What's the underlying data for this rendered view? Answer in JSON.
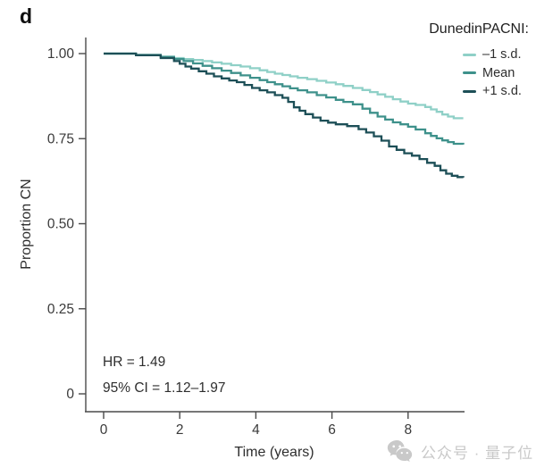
{
  "panel_label": "d",
  "legend": {
    "title": "DunedinPACNI:",
    "entries": [
      {
        "label": "–1 s.d.",
        "color": "#8fd0c7"
      },
      {
        "label": "Mean",
        "color": "#3e918b"
      },
      {
        "label": "+1 s.d.",
        "color": "#1d4f57"
      }
    ]
  },
  "annotations": {
    "hr": "HR = 1.49",
    "ci": "95% CI = 1.12–1.97"
  },
  "watermark": {
    "icon": "wechat-icon",
    "text": "公众号 · 量子位",
    "color": "#c9c9c9"
  },
  "colors": {
    "axis": "#4a4a4a",
    "tick_text": "#3a3a3a"
  },
  "chart_data": {
    "type": "line",
    "subtype": "kaplan-meier-step",
    "title": "",
    "xlabel": "Time (years)",
    "ylabel": "Proportion CN",
    "xlim": [
      0,
      9.5
    ],
    "ylim": [
      0,
      1.05
    ],
    "grid": false,
    "legend_position": "top-right",
    "xticks": [
      {
        "value": 0,
        "label": "0"
      },
      {
        "value": 2,
        "label": "2"
      },
      {
        "value": 4,
        "label": "4"
      },
      {
        "value": 6,
        "label": "6"
      },
      {
        "value": 8,
        "label": "8"
      }
    ],
    "yticks": [
      {
        "value": 1.0,
        "label": "1.00"
      },
      {
        "value": 0.75,
        "label": "0.75"
      },
      {
        "value": 0.5,
        "label": "0.50"
      },
      {
        "value": 0.25,
        "label": "0.25"
      },
      {
        "value": 0.0,
        "label": "0"
      }
    ],
    "series": [
      {
        "name": "-1 s.d.",
        "color": "#8fd0c7",
        "points": [
          [
            0,
            1.0
          ],
          [
            0.85,
            0.996
          ],
          [
            1.5,
            0.991
          ],
          [
            1.85,
            0.987
          ],
          [
            2.1,
            0.984
          ],
          [
            2.35,
            0.981
          ],
          [
            2.6,
            0.978
          ],
          [
            2.85,
            0.974
          ],
          [
            3.1,
            0.97
          ],
          [
            3.35,
            0.966
          ],
          [
            3.6,
            0.962
          ],
          [
            3.85,
            0.957
          ],
          [
            4.1,
            0.951
          ],
          [
            4.3,
            0.946
          ],
          [
            4.5,
            0.941
          ],
          [
            4.7,
            0.937
          ],
          [
            4.9,
            0.933
          ],
          [
            5.1,
            0.929
          ],
          [
            5.35,
            0.925
          ],
          [
            5.6,
            0.92
          ],
          [
            5.85,
            0.915
          ],
          [
            6.1,
            0.91
          ],
          [
            6.3,
            0.905
          ],
          [
            6.55,
            0.899
          ],
          [
            6.8,
            0.893
          ],
          [
            7.0,
            0.887
          ],
          [
            7.2,
            0.88
          ],
          [
            7.4,
            0.873
          ],
          [
            7.6,
            0.866
          ],
          [
            7.8,
            0.859
          ],
          [
            8.0,
            0.853
          ],
          [
            8.2,
            0.849
          ],
          [
            8.45,
            0.843
          ],
          [
            8.6,
            0.836
          ],
          [
            8.75,
            0.829
          ],
          [
            8.9,
            0.821
          ],
          [
            9.05,
            0.815
          ],
          [
            9.2,
            0.81
          ],
          [
            9.45,
            0.81
          ]
        ]
      },
      {
        "name": "Mean",
        "color": "#3e918b",
        "points": [
          [
            0,
            1.0
          ],
          [
            0.85,
            0.996
          ],
          [
            1.5,
            0.99
          ],
          [
            1.85,
            0.984
          ],
          [
            2.1,
            0.978
          ],
          [
            2.35,
            0.971
          ],
          [
            2.6,
            0.964
          ],
          [
            2.85,
            0.957
          ],
          [
            3.1,
            0.95
          ],
          [
            3.35,
            0.943
          ],
          [
            3.6,
            0.936
          ],
          [
            3.85,
            0.929
          ],
          [
            4.1,
            0.922
          ],
          [
            4.3,
            0.916
          ],
          [
            4.5,
            0.91
          ],
          [
            4.7,
            0.904
          ],
          [
            4.9,
            0.898
          ],
          [
            5.1,
            0.892
          ],
          [
            5.35,
            0.886
          ],
          [
            5.6,
            0.878
          ],
          [
            5.85,
            0.871
          ],
          [
            6.1,
            0.864
          ],
          [
            6.3,
            0.858
          ],
          [
            6.55,
            0.851
          ],
          [
            6.8,
            0.838
          ],
          [
            7.0,
            0.826
          ],
          [
            7.2,
            0.815
          ],
          [
            7.4,
            0.806
          ],
          [
            7.6,
            0.798
          ],
          [
            7.8,
            0.792
          ],
          [
            8.0,
            0.785
          ],
          [
            8.2,
            0.777
          ],
          [
            8.45,
            0.766
          ],
          [
            8.6,
            0.758
          ],
          [
            8.75,
            0.751
          ],
          [
            8.9,
            0.745
          ],
          [
            9.05,
            0.74
          ],
          [
            9.2,
            0.735
          ],
          [
            9.45,
            0.733
          ]
        ]
      },
      {
        "name": "+1 s.d.",
        "color": "#1d4f57",
        "points": [
          [
            0,
            1.0
          ],
          [
            0.85,
            0.995
          ],
          [
            1.5,
            0.987
          ],
          [
            1.85,
            0.978
          ],
          [
            2.0,
            0.97
          ],
          [
            2.15,
            0.962
          ],
          [
            2.3,
            0.956
          ],
          [
            2.5,
            0.948
          ],
          [
            2.7,
            0.941
          ],
          [
            2.9,
            0.933
          ],
          [
            3.1,
            0.927
          ],
          [
            3.3,
            0.921
          ],
          [
            3.5,
            0.916
          ],
          [
            3.7,
            0.908
          ],
          [
            3.9,
            0.899
          ],
          [
            4.1,
            0.892
          ],
          [
            4.3,
            0.886
          ],
          [
            4.5,
            0.878
          ],
          [
            4.7,
            0.87
          ],
          [
            4.85,
            0.858
          ],
          [
            5.0,
            0.842
          ],
          [
            5.15,
            0.832
          ],
          [
            5.3,
            0.822
          ],
          [
            5.5,
            0.812
          ],
          [
            5.7,
            0.803
          ],
          [
            5.9,
            0.797
          ],
          [
            6.1,
            0.792
          ],
          [
            6.4,
            0.787
          ],
          [
            6.7,
            0.778
          ],
          [
            6.9,
            0.768
          ],
          [
            7.1,
            0.757
          ],
          [
            7.3,
            0.744
          ],
          [
            7.5,
            0.727
          ],
          [
            7.7,
            0.717
          ],
          [
            7.9,
            0.707
          ],
          [
            8.1,
            0.7
          ],
          [
            8.3,
            0.69
          ],
          [
            8.5,
            0.679
          ],
          [
            8.7,
            0.67
          ],
          [
            8.85,
            0.657
          ],
          [
            9.0,
            0.647
          ],
          [
            9.15,
            0.641
          ],
          [
            9.3,
            0.637
          ],
          [
            9.45,
            0.636
          ]
        ]
      }
    ]
  }
}
